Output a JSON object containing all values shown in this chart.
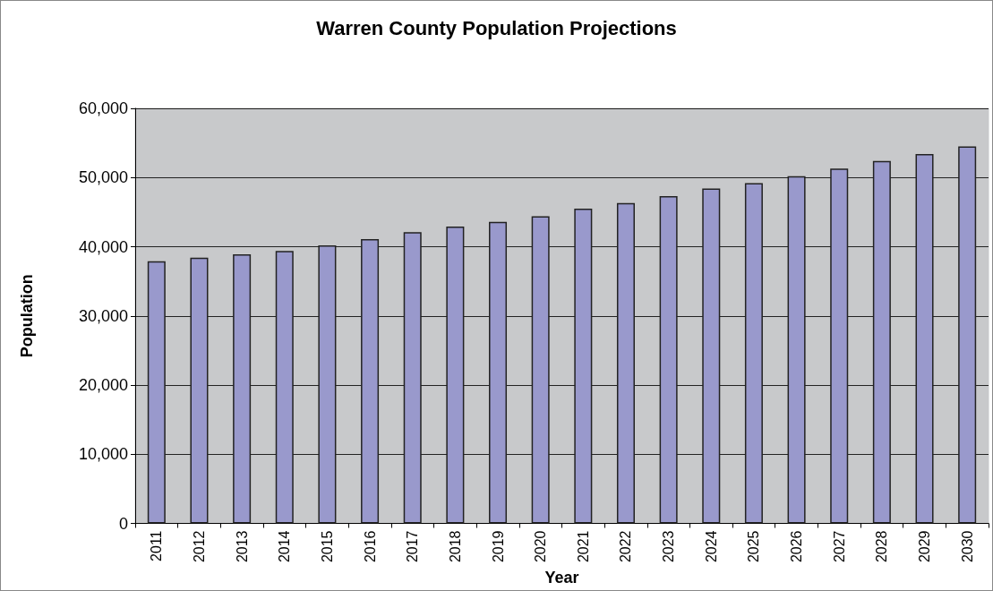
{
  "chart_data": {
    "type": "bar",
    "title": "Warren County Population Projections",
    "xlabel": "Year",
    "ylabel": "Population",
    "categories": [
      "2011",
      "2012",
      "2013",
      "2014",
      "2015",
      "2016",
      "2017",
      "2018",
      "2019",
      "2020",
      "2021",
      "2022",
      "2023",
      "2024",
      "2025",
      "2026",
      "2027",
      "2028",
      "2029",
      "2030"
    ],
    "values": [
      37900,
      38400,
      38900,
      39400,
      40200,
      41100,
      42100,
      42900,
      43600,
      44400,
      45500,
      46300,
      47300,
      48400,
      49200,
      50200,
      51300,
      52400,
      53400,
      54500
    ],
    "color": "#9999cc",
    "ylim": [
      0,
      60000
    ],
    "yticks": [
      {
        "value": 0,
        "label": "0"
      },
      {
        "value": 10000,
        "label": "10,000"
      },
      {
        "value": 20000,
        "label": "20,000"
      },
      {
        "value": 30000,
        "label": "30,000"
      },
      {
        "value": 40000,
        "label": "40,000"
      },
      {
        "value": 50000,
        "label": "50,000"
      },
      {
        "value": 60000,
        "label": "60,000"
      }
    ],
    "grid": "y"
  }
}
